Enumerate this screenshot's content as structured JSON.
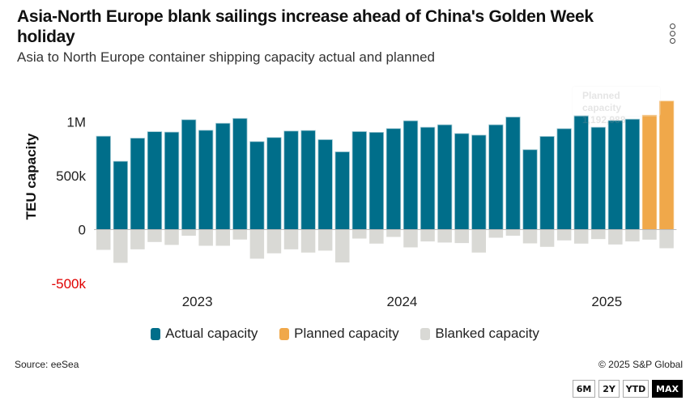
{
  "header": {
    "title": "Asia-North Europe blank sailings increase ahead of China's Golden Week holiday",
    "subtitle": "Asia to North Europe container shipping capacity actual and planned",
    "menu_icon": "kebab-menu-icon"
  },
  "tooltip": {
    "label": "Planned capacity",
    "value": "1,192,988"
  },
  "footer": {
    "source": "Source: eeSea",
    "copyright": "© 2025 S&P Global"
  },
  "range_buttons": [
    {
      "label": "6M",
      "active": false
    },
    {
      "label": "2Y",
      "active": false
    },
    {
      "label": "YTD",
      "active": false
    },
    {
      "label": "MAX",
      "active": true
    }
  ],
  "colors": {
    "actual": "#006e8a",
    "planned": "#f0a84a",
    "blanked": "#d9d9d5",
    "negative_tick": "#e00000"
  },
  "chart_data": {
    "type": "bar",
    "title": "Asia-North Europe blank sailings increase ahead of China's Golden Week holiday",
    "subtitle": "Asia to North Europe container shipping capacity actual and planned",
    "xlabel": "",
    "ylabel": "TEU capacity",
    "ylim": [
      -500000,
      1200000
    ],
    "yticks": [
      {
        "value": 1000000,
        "label": "1M"
      },
      {
        "value": 500000,
        "label": "500k"
      },
      {
        "value": 0,
        "label": "0"
      },
      {
        "value": -500000,
        "label": "-500k"
      }
    ],
    "xtick_labels": [
      {
        "label": "2023",
        "year": 2023
      },
      {
        "label": "2024",
        "year": 2024
      },
      {
        "label": "2025",
        "year": 2025
      }
    ],
    "grid": false,
    "legend_position": "bottom",
    "categories": [
      "2023-01",
      "2023-02",
      "2023-03",
      "2023-04",
      "2023-05",
      "2023-06",
      "2023-07",
      "2023-08",
      "2023-09",
      "2023-10",
      "2023-11",
      "2023-12",
      "2024-01",
      "2024-02",
      "2024-03",
      "2024-04",
      "2024-05",
      "2024-06",
      "2024-07",
      "2024-08",
      "2024-09",
      "2024-10",
      "2024-11",
      "2024-12",
      "2025-01",
      "2025-02",
      "2025-03",
      "2025-04",
      "2025-05",
      "2025-06",
      "2025-07",
      "2025-08",
      "2025-09",
      "2025-10"
    ],
    "series": [
      {
        "name": "Actual capacity",
        "color_key": "actual",
        "values": [
          867000,
          634000,
          849000,
          909000,
          905000,
          1020000,
          922000,
          987000,
          1032000,
          817000,
          855000,
          915000,
          920000,
          835000,
          722000,
          910000,
          903000,
          938000,
          1010000,
          950000,
          973000,
          892000,
          877000,
          973000,
          1045000,
          742000,
          865000,
          937000,
          1057000,
          950000,
          1012000,
          1025000,
          null,
          null
        ]
      },
      {
        "name": "Planned capacity",
        "color_key": "planned",
        "values": [
          null,
          null,
          null,
          null,
          null,
          null,
          null,
          null,
          null,
          null,
          null,
          null,
          null,
          null,
          null,
          null,
          null,
          null,
          null,
          null,
          null,
          null,
          null,
          null,
          null,
          null,
          null,
          null,
          null,
          null,
          null,
          null,
          1062000,
          1192988
        ]
      },
      {
        "name": "Blanked capacity",
        "color_key": "blanked",
        "values": [
          -188000,
          -308000,
          -183000,
          -115000,
          -142000,
          -57000,
          -150000,
          -150000,
          -92000,
          -270000,
          -220000,
          -183000,
          -213000,
          -195000,
          -305000,
          -83000,
          -130000,
          -68000,
          -165000,
          -110000,
          -120000,
          -125000,
          -213000,
          -75000,
          -57000,
          -128000,
          -160000,
          -100000,
          -130000,
          -88000,
          -138000,
          -110000,
          -93000,
          -173000
        ]
      }
    ]
  }
}
